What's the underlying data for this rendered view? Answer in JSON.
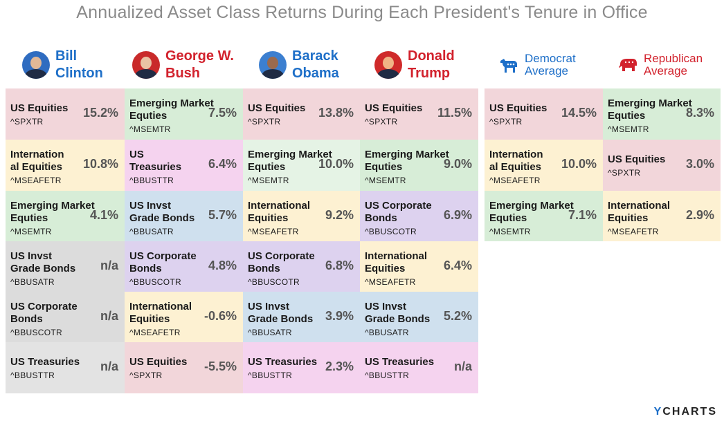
{
  "title": "Annualized Asset Class Returns During Each President's Tenure in Office",
  "chart_data": {
    "type": "table",
    "title": "Annualized Asset Class Returns During Each President's Tenure in Office",
    "columns": [
      {
        "name_line1": "Bill",
        "name_line2": "Clinton",
        "party": "democrat",
        "cells": [
          {
            "name_line1": "US Equities",
            "name_line2": "",
            "ticker": "^SPXTR",
            "value": "15.2%",
            "color": "#f2d6da"
          },
          {
            "name_line1": "Internation",
            "name_line2": "al Equities",
            "ticker": "^MSEAFETR",
            "value": "10.8%",
            "color": "#fdf1d2"
          },
          {
            "name_line1": "Emerging Market",
            "name_line2": "Equties",
            "ticker": "^MSEMTR",
            "value": "4.1%",
            "color": "#d7edd7"
          },
          {
            "name_line1": "US Invst",
            "name_line2": "Grade Bonds",
            "ticker": "^BBUSATR",
            "value": "n/a",
            "color": "#dcdcdc"
          },
          {
            "name_line1": "US Corporate",
            "name_line2": "Bonds",
            "ticker": "^BBUSCOTR",
            "value": "n/a",
            "color": "#dcdcdc"
          },
          {
            "name_line1": "US Treasuries",
            "name_line2": "",
            "ticker": "^BBUSTTR",
            "value": "n/a",
            "color": "#e3e3e3"
          }
        ]
      },
      {
        "name_line1": "George W.",
        "name_line2": "Bush",
        "party": "republican",
        "cells": [
          {
            "name_line1": "Emerging Market",
            "name_line2": "Equties",
            "ticker": "^MSEMTR",
            "value": "7.5%",
            "color": "#d7edd7"
          },
          {
            "name_line1": "US",
            "name_line2": "Treasuries",
            "ticker": "^BBUSTTR",
            "value": "6.4%",
            "color": "#f5d3ef"
          },
          {
            "name_line1": "US Invst",
            "name_line2": "Grade Bonds",
            "ticker": "^BBUSATR",
            "value": "5.7%",
            "color": "#cfe0ee"
          },
          {
            "name_line1": "US Corporate",
            "name_line2": "Bonds",
            "ticker": "^BBUSCOTR",
            "value": "4.8%",
            "color": "#ddd2ef"
          },
          {
            "name_line1": "International",
            "name_line2": "Equities",
            "ticker": "^MSEAFETR",
            "value": "-0.6%",
            "color": "#fdf1d2"
          },
          {
            "name_line1": "US Equities",
            "name_line2": "",
            "ticker": "^SPXTR",
            "value": "-5.5%",
            "color": "#f2d6da"
          }
        ]
      },
      {
        "name_line1": "Barack",
        "name_line2": "Obama",
        "party": "democrat",
        "cells": [
          {
            "name_line1": "US Equities",
            "name_line2": "",
            "ticker": "^SPXTR",
            "value": "13.8%",
            "color": "#f2d6da"
          },
          {
            "name_line1": "Emerging Market",
            "name_line2": "Equties",
            "ticker": "^MSEMTR",
            "value": "10.0%",
            "color": "#e5f3e5"
          },
          {
            "name_line1": "International",
            "name_line2": "Equities",
            "ticker": "^MSEAFETR",
            "value": "9.2%",
            "color": "#fdf1d2"
          },
          {
            "name_line1": "US Corporate",
            "name_line2": "Bonds",
            "ticker": "^BBUSCOTR",
            "value": "6.8%",
            "color": "#ddd2ef"
          },
          {
            "name_line1": "US Invst",
            "name_line2": "Grade Bonds",
            "ticker": "^BBUSATR",
            "value": "3.9%",
            "color": "#cfe0ee"
          },
          {
            "name_line1": "US Treasuries",
            "name_line2": "",
            "ticker": "^BBUSTTR",
            "value": "2.3%",
            "color": "#f5d3ef"
          }
        ]
      },
      {
        "name_line1": "Donald",
        "name_line2": "Trump",
        "party": "republican",
        "cells": [
          {
            "name_line1": "US Equities",
            "name_line2": "",
            "ticker": "^SPXTR",
            "value": "11.5%",
            "color": "#f2d6da"
          },
          {
            "name_line1": "Emerging Market",
            "name_line2": "Equties",
            "ticker": "^MSEMTR",
            "value": "9.0%",
            "color": "#d7edd7"
          },
          {
            "name_line1": "US Corporate",
            "name_line2": "Bonds",
            "ticker": "^BBUSCOTR",
            "value": "6.9%",
            "color": "#ddd2ef"
          },
          {
            "name_line1": "International",
            "name_line2": "Equities",
            "ticker": "^MSEAFETR",
            "value": "6.4%",
            "color": "#fdf1d2"
          },
          {
            "name_line1": "US Invst",
            "name_line2": "Grade Bonds",
            "ticker": "^BBUSATR",
            "value": "5.2%",
            "color": "#cfe0ee"
          },
          {
            "name_line1": "US Treasuries",
            "name_line2": "",
            "ticker": "^BBUSTTR",
            "value": "n/a",
            "color": "#f5d3ef"
          }
        ]
      },
      {
        "name_line1": "Democrat",
        "name_line2": "Average",
        "party": "democrat",
        "cells": [
          {
            "name_line1": "US Equities",
            "name_line2": "",
            "ticker": "^SPXTR",
            "value": "14.5%",
            "color": "#f2d6da"
          },
          {
            "name_line1": "Internation",
            "name_line2": "al Equities",
            "ticker": "^MSEAFETR",
            "value": "10.0%",
            "color": "#fdf1d2"
          },
          {
            "name_line1": "Emerging Market",
            "name_line2": "Equties",
            "ticker": "^MSEMTR",
            "value": "7.1%",
            "color": "#d7edd7"
          }
        ]
      },
      {
        "name_line1": "Republican",
        "name_line2": "Average",
        "party": "republican",
        "cells": [
          {
            "name_line1": "Emerging Market",
            "name_line2": "Equties",
            "ticker": "^MSEMTR",
            "value": "8.3%",
            "color": "#d7edd7"
          },
          {
            "name_line1": "US Equities",
            "name_line2": "",
            "ticker": "^SPXTR",
            "value": "3.0%",
            "color": "#f2d6da"
          },
          {
            "name_line1": "International",
            "name_line2": "Equities",
            "ticker": "^MSEAFETR",
            "value": "2.9%",
            "color": "#fdf1d2"
          }
        ]
      }
    ]
  },
  "colors": {
    "democrat": "#1e6fc8",
    "republican": "#d2222d",
    "title": "#8a8a8a"
  },
  "icons": {
    "democrat": "donkey-icon",
    "republican": "elephant-icon"
  },
  "logo": {
    "y": "Y",
    "rest": "CHARTS"
  }
}
